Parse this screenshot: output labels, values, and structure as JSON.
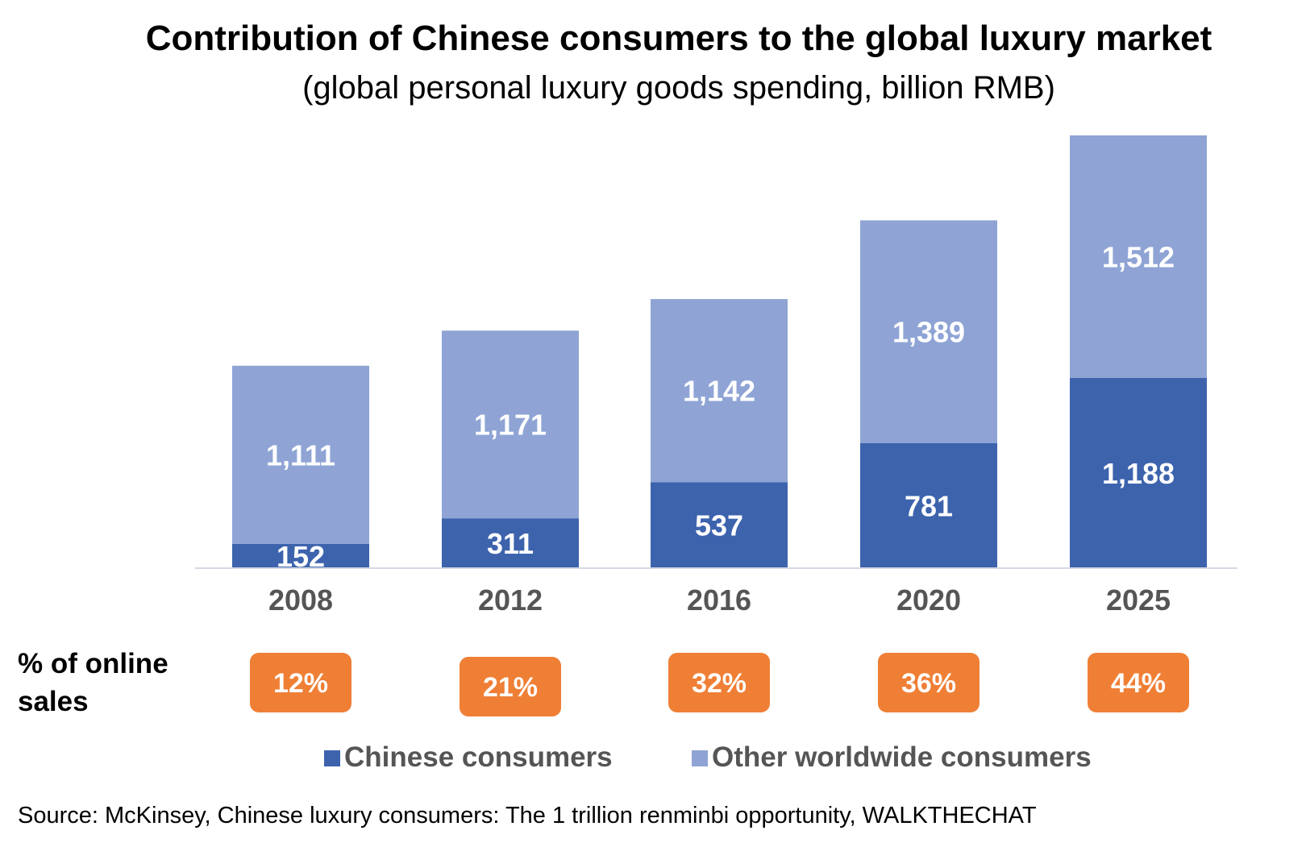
{
  "chart_data": {
    "type": "bar",
    "stacked": true,
    "title": "Contribution of Chinese consumers to the global luxury market",
    "subtitle": "(global personal luxury goods spending, billion RMB)",
    "categories": [
      "2008",
      "2012",
      "2016",
      "2020",
      "2025"
    ],
    "series": [
      {
        "name": "Chinese consumers",
        "color": "#3d63ad",
        "values": [
          152,
          311,
          537,
          781,
          1188
        ],
        "labels": [
          "152",
          "311",
          "537",
          "781",
          "1,188"
        ]
      },
      {
        "name": "Other worldwide consumers",
        "color": "#8fa4d5",
        "values": [
          1111,
          1171,
          1142,
          1389,
          1512
        ],
        "labels": [
          "1,111",
          "1,171",
          "1,142",
          "1,389",
          "1,512"
        ]
      }
    ],
    "ylim": [
      0,
      2700
    ],
    "grid": false,
    "legend_position": "bottom",
    "online_sales": {
      "label": "% of online sales",
      "values": [
        "12%",
        "21%",
        "32%",
        "36%",
        "44%"
      ],
      "color": "#ef7f35"
    },
    "source": "Source: McKinsey, Chinese luxury consumers: The 1 trillion renminbi opportunity, WALKTHECHAT"
  }
}
